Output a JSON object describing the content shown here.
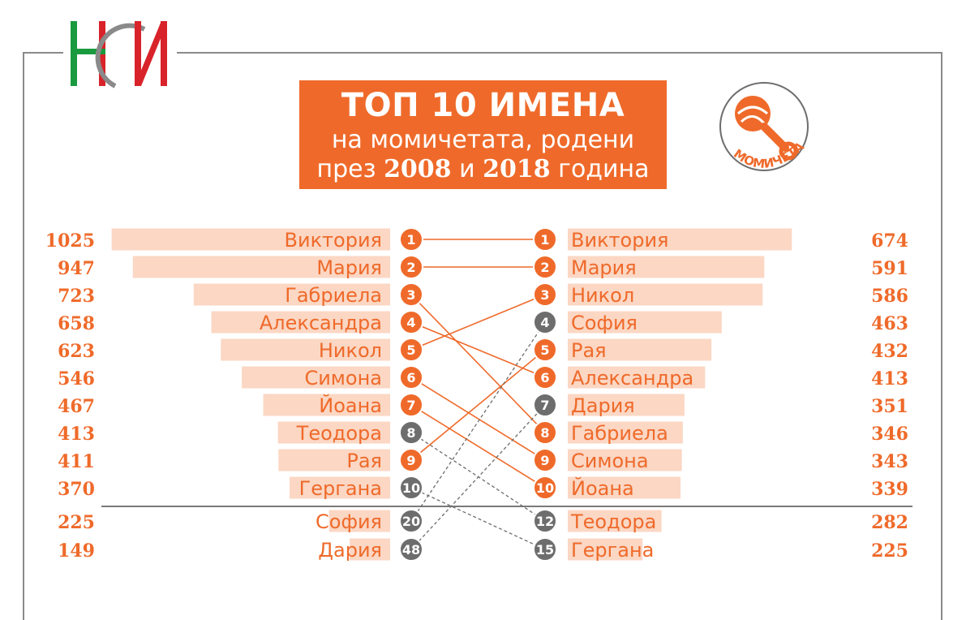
{
  "title": {
    "line1": "ТОП 10 ИМЕНА",
    "line2": "на момичетата, родени",
    "line3_pre": "през ",
    "year1": "2008",
    "line3_mid": " и ",
    "year2": "2018",
    "line3_post": " година"
  },
  "badge": {
    "label": "МОМИЧЕТА",
    "icon": "rattle-icon"
  },
  "logo": {
    "text": "НСИ"
  },
  "colors": {
    "accent": "#ef6a2a",
    "bar": "#fbd7c4",
    "grey": "#6d6d6d",
    "logo_green": "#1a9a3e",
    "logo_red": "#d8232a",
    "logo_grey": "#8a8a8a"
  },
  "chart_data": {
    "type": "bar",
    "left": {
      "label": "2008",
      "items": [
        {
          "name": "Виктория",
          "value": 1025,
          "rank": "1",
          "top10_2018": true
        },
        {
          "name": "Мария",
          "value": 947,
          "rank": "2",
          "top10_2018": true
        },
        {
          "name": "Габриела",
          "value": 723,
          "rank": "3",
          "top10_2018": true
        },
        {
          "name": "Александра",
          "value": 658,
          "rank": "4",
          "top10_2018": true
        },
        {
          "name": "Никол",
          "value": 623,
          "rank": "5",
          "top10_2018": true
        },
        {
          "name": "Симона",
          "value": 546,
          "rank": "6",
          "top10_2018": true
        },
        {
          "name": "Йоана",
          "value": 467,
          "rank": "7",
          "top10_2018": true
        },
        {
          "name": "Теодора",
          "value": 413,
          "rank": "8",
          "top10_2018": false
        },
        {
          "name": "Рая",
          "value": 411,
          "rank": "9",
          "top10_2018": true
        },
        {
          "name": "Гергана",
          "value": 370,
          "rank": "10",
          "top10_2018": false
        },
        {
          "name": "София",
          "value": 225,
          "rank": "20",
          "top10_2018": true
        },
        {
          "name": "Дария",
          "value": 149,
          "rank": "48",
          "top10_2018": true
        }
      ]
    },
    "right": {
      "label": "2018",
      "items": [
        {
          "name": "Виктория",
          "value": 674,
          "rank": "1",
          "top10_2008": true
        },
        {
          "name": "Мария",
          "value": 591,
          "rank": "2",
          "top10_2008": true
        },
        {
          "name": "Никол",
          "value": 586,
          "rank": "3",
          "top10_2008": true
        },
        {
          "name": "София",
          "value": 463,
          "rank": "4",
          "top10_2008": false
        },
        {
          "name": "Рая",
          "value": 432,
          "rank": "5",
          "top10_2008": true
        },
        {
          "name": "Александра",
          "value": 413,
          "rank": "6",
          "top10_2008": true
        },
        {
          "name": "Дария",
          "value": 351,
          "rank": "7",
          "top10_2008": false
        },
        {
          "name": "Габриела",
          "value": 346,
          "rank": "8",
          "top10_2008": true
        },
        {
          "name": "Симона",
          "value": 343,
          "rank": "9",
          "top10_2008": true
        },
        {
          "name": "Йоана",
          "value": 339,
          "rank": "10",
          "top10_2008": true
        },
        {
          "name": "Теодора",
          "value": 282,
          "rank": "12",
          "top10_2008": true
        },
        {
          "name": "Гергана",
          "value": 225,
          "rank": "15",
          "top10_2008": true
        }
      ]
    }
  }
}
